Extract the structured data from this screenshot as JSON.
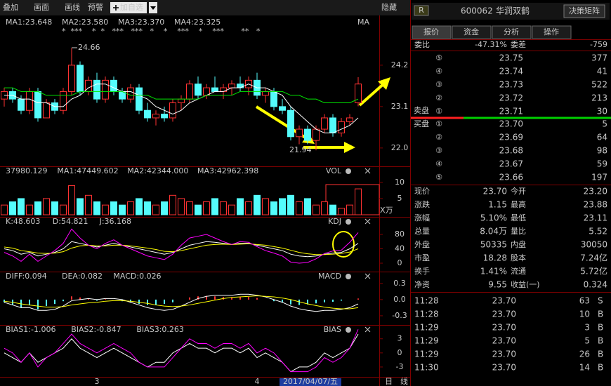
{
  "toolbar": {
    "items": [
      "叠加",
      "画面",
      "画线",
      "预警"
    ],
    "add_button": "加自选",
    "hide": "隐藏"
  },
  "chart": {
    "up_color": "#ff3232",
    "down_color": "#54fcfc",
    "main": {
      "ylim": [
        21.55,
        25.41
      ],
      "yticks": [
        {
          "value": 22,
          "label": "22.0"
        },
        23.1,
        24.2
      ],
      "headers": [
        {
          "text": "MA1:23.648",
          "color": "#ffffff"
        },
        {
          "text": "MA2:23.580",
          "color": "#ffff00"
        },
        {
          "text": "MA3:23.370",
          "color": "#ff00ff"
        },
        {
          "text": "MA4:23.325",
          "color": "#00e600"
        }
      ],
      "title": "MA",
      "stars": "*  ***    *  *   ***   ***   *    *    ***    *    ***       **   *",
      "high_label": "24.66",
      "low_label": "21.94",
      "open": [
        23.3,
        23.5,
        23.3,
        23.0,
        23.5,
        22.8,
        23.2,
        23.0,
        23.5,
        24.2,
        23.5,
        23.8,
        23.3,
        23.8,
        23.5,
        23.3,
        23.6,
        23.0,
        22.8,
        22.9,
        22.8,
        23.2,
        23.3,
        23.7,
        23.4,
        23.6,
        23.5,
        23.6,
        23.7,
        23.6,
        23.8,
        23.4,
        23.5,
        23.1,
        23.0,
        22.3,
        22.5,
        22.2,
        22.5,
        22.8,
        22.4,
        22.7,
        23.2
      ],
      "high": [
        23.6,
        23.6,
        23.4,
        23.6,
        23.6,
        23.3,
        23.3,
        23.6,
        24.66,
        24.3,
        23.9,
        24.0,
        23.9,
        23.9,
        23.6,
        23.7,
        23.7,
        23.2,
        23.0,
        23.1,
        23.3,
        23.4,
        23.8,
        23.9,
        23.7,
        23.9,
        23.7,
        23.8,
        23.9,
        23.9,
        24.0,
        23.6,
        23.6,
        23.3,
        23.1,
        22.6,
        22.6,
        22.6,
        22.9,
        22.9,
        22.8,
        22.9,
        23.88
      ],
      "low": [
        23.1,
        23.2,
        22.9,
        22.9,
        22.7,
        22.8,
        22.9,
        22.9,
        23.4,
        23.4,
        23.4,
        23.2,
        23.2,
        23.4,
        23.2,
        23.2,
        22.9,
        22.7,
        22.6,
        22.7,
        22.7,
        23.0,
        23.2,
        23.3,
        23.3,
        23.5,
        23.3,
        23.4,
        23.5,
        23.4,
        23.3,
        23.2,
        23.0,
        22.9,
        22.2,
        22.1,
        22.1,
        21.94,
        22.4,
        22.3,
        22.3,
        22.6,
        23.11
      ],
      "close": [
        23.5,
        23.3,
        23.0,
        23.5,
        22.8,
        23.2,
        23.0,
        23.5,
        24.2,
        23.5,
        23.8,
        23.3,
        23.8,
        23.5,
        23.3,
        23.6,
        23.0,
        22.8,
        22.9,
        22.8,
        23.2,
        23.3,
        23.7,
        23.4,
        23.6,
        23.5,
        23.6,
        23.7,
        23.6,
        23.8,
        23.4,
        23.5,
        23.1,
        23.0,
        22.3,
        22.5,
        22.2,
        22.5,
        22.8,
        22.4,
        22.7,
        22.8,
        23.7
      ],
      "lines": [
        {
          "color": "#ffffff",
          "values": [
            23.4,
            23.4,
            23.3,
            23.3,
            23.2,
            23.2,
            23.1,
            23.1,
            23.3,
            23.4,
            23.6,
            23.7,
            23.7,
            23.6,
            23.5,
            23.5,
            23.4,
            23.3,
            23.1,
            23.0,
            22.9,
            23.0,
            23.2,
            23.3,
            23.4,
            23.5,
            23.5,
            23.6,
            23.6,
            23.7,
            23.6,
            23.6,
            23.5,
            23.4,
            23.1,
            22.9,
            22.7,
            22.5,
            22.4,
            22.4,
            22.5,
            22.6,
            22.8
          ]
        },
        {
          "color": "#00e600",
          "values": [
            23.6,
            23.6,
            23.5,
            23.5,
            23.5,
            23.4,
            23.4,
            23.4,
            23.4,
            23.5,
            23.5,
            23.5,
            23.5,
            23.5,
            23.5,
            23.4,
            23.4,
            23.4,
            23.3,
            23.3,
            23.3,
            23.3,
            23.3,
            23.3,
            23.4,
            23.4,
            23.4,
            23.4,
            23.5,
            23.5,
            23.5,
            23.5,
            23.5,
            23.5,
            23.4,
            23.4,
            23.3,
            23.3,
            23.2,
            23.2,
            23.2,
            23.2,
            23.3
          ]
        }
      ]
    },
    "vol": {
      "ylim": [
        0,
        14.3
      ],
      "yticks": [
        5,
        10
      ],
      "unit": "X万",
      "title": "VOL",
      "headers": [
        {
          "text": "37980.129",
          "color": "#ffffff"
        },
        {
          "text": "MA1:47449.602",
          "color": "#ffffff"
        },
        {
          "text": "MA2:42344.000",
          "color": "#ff00ff"
        },
        {
          "text": "MA3:42962.398",
          "color": "#00e600"
        }
      ],
      "values": [
        3,
        4,
        5,
        3,
        4,
        5,
        4,
        3,
        9,
        5,
        6,
        4,
        3,
        4,
        3,
        4,
        5,
        4,
        3,
        4,
        6,
        5,
        4,
        3,
        4,
        5,
        4,
        3,
        5,
        4,
        6,
        5,
        4,
        5,
        6,
        4,
        5,
        3,
        4,
        3,
        2,
        3,
        8
      ]
    },
    "kdj": {
      "ylim": [
        -19.5,
        122.9
      ],
      "yticks": [
        0,
        40,
        80
      ],
      "title": "KDJ",
      "headers": [
        {
          "text": "K:48.603",
          "color": "#ffffff"
        },
        {
          "text": "D:54.821",
          "color": "#ffff00"
        },
        {
          "text": "J:36.168",
          "color": "#ff00ff"
        }
      ],
      "lines": [
        {
          "color": "#ffffff",
          "values": [
            40,
            35,
            25,
            30,
            20,
            25,
            30,
            40,
            60,
            55,
            50,
            45,
            50,
            55,
            50,
            45,
            40,
            35,
            30,
            25,
            30,
            40,
            50,
            55,
            60,
            58,
            55,
            52,
            55,
            55,
            50,
            45,
            40,
            35,
            25,
            20,
            18,
            20,
            25,
            28,
            30,
            40,
            55
          ]
        },
        {
          "color": "#ffff00",
          "values": [
            45,
            42,
            35,
            32,
            28,
            27,
            28,
            32,
            42,
            48,
            50,
            48,
            48,
            50,
            50,
            48,
            45,
            42,
            38,
            33,
            32,
            35,
            40,
            45,
            50,
            52,
            53,
            52,
            53,
            54,
            52,
            50,
            46,
            42,
            36,
            30,
            26,
            24,
            24,
            25,
            27,
            31,
            40
          ]
        },
        {
          "color": "#ff00ff",
          "values": [
            30,
            20,
            5,
            25,
            5,
            20,
            35,
            55,
            95,
            70,
            50,
            40,
            55,
            65,
            50,
            40,
            30,
            20,
            15,
            10,
            25,
            50,
            70,
            75,
            80,
            70,
            60,
            52,
            60,
            58,
            46,
            35,
            28,
            20,
            3,
            0,
            2,
            12,
            27,
            34,
            36,
            58,
            85
          ]
        }
      ]
    },
    "macd": {
      "ylim": [
        -0.457,
        0.48
      ],
      "yticks": [
        -0.3,
        {
          "value": 0,
          "label": "0.0"
        },
        0.3
      ],
      "title": "MACD",
      "headers": [
        {
          "text": "DIFF:0.094",
          "color": "#ffffff"
        },
        {
          "text": "DEA:0.082",
          "color": "#ffff00"
        },
        {
          "text": "MACD:0.026",
          "color": "#ff00ff"
        }
      ],
      "bars": [
        -0.05,
        -0.1,
        -0.15,
        -0.1,
        -0.18,
        -0.12,
        -0.08,
        -0.03,
        0.06,
        0.04,
        0.02,
        -0.02,
        0.01,
        0.0,
        -0.03,
        -0.05,
        -0.08,
        -0.1,
        -0.1,
        -0.08,
        -0.05,
        0.0,
        0.04,
        0.06,
        0.07,
        0.06,
        0.05,
        0.04,
        0.05,
        0.05,
        0.03,
        0.0,
        -0.03,
        -0.05,
        -0.09,
        -0.1,
        -0.09,
        -0.07,
        -0.05,
        -0.04,
        -0.02,
        0.0,
        0.02
      ],
      "lines": [
        {
          "color": "#ffffff",
          "values": [
            -0.05,
            -0.1,
            -0.15,
            -0.15,
            -0.2,
            -0.2,
            -0.18,
            -0.12,
            -0.02,
            0.0,
            0.02,
            0.0,
            0.02,
            0.02,
            0.0,
            -0.05,
            -0.1,
            -0.15,
            -0.18,
            -0.2,
            -0.18,
            -0.12,
            -0.05,
            0.02,
            0.06,
            0.08,
            0.08,
            0.08,
            0.1,
            0.1,
            0.08,
            0.05,
            0.0,
            -0.05,
            -0.12,
            -0.17,
            -0.2,
            -0.22,
            -0.2,
            -0.2,
            -0.18,
            -0.15,
            -0.08
          ]
        },
        {
          "color": "#ffff00",
          "values": [
            -0.03,
            -0.05,
            -0.08,
            -0.1,
            -0.12,
            -0.14,
            -0.14,
            -0.13,
            -0.1,
            -0.08,
            -0.06,
            -0.05,
            -0.03,
            -0.02,
            -0.02,
            -0.03,
            -0.05,
            -0.07,
            -0.1,
            -0.12,
            -0.13,
            -0.12,
            -0.1,
            -0.07,
            -0.04,
            -0.01,
            0.02,
            0.04,
            0.05,
            0.06,
            0.07,
            0.06,
            0.05,
            0.03,
            0.0,
            -0.04,
            -0.08,
            -0.11,
            -0.14,
            -0.16,
            -0.17,
            -0.17,
            -0.15
          ]
        }
      ]
    },
    "bias": {
      "ylim": [
        -5.1,
        5.5
      ],
      "yticks": [
        -3,
        0,
        3
      ],
      "title": "BIAS",
      "headers": [
        {
          "text": "BIAS1:-1.006",
          "color": "#ffffff"
        },
        {
          "text": "BIAS2:-0.847",
          "color": "#ffff00"
        },
        {
          "text": "BIAS3:0.263",
          "color": "#ff00ff"
        }
      ],
      "lines": [
        {
          "color": "#ffffff",
          "values": [
            0,
            -1,
            -2,
            0,
            -2,
            -1,
            0,
            1,
            3,
            1,
            0,
            -1,
            0,
            1,
            0,
            -1,
            -2,
            -3,
            -2,
            -2,
            0,
            1,
            2,
            1,
            1,
            0,
            1,
            1,
            0,
            1,
            -1,
            0,
            -1,
            -2,
            -4,
            -3,
            -3,
            -2,
            0,
            -1,
            0,
            1,
            4
          ]
        },
        {
          "color": "#ff00ff",
          "values": [
            1,
            0,
            -2,
            0,
            -3,
            -1,
            0,
            2,
            4,
            2,
            1,
            0,
            1,
            2,
            1,
            0,
            -2,
            -3,
            -3,
            -3,
            -1,
            1,
            3,
            2,
            2,
            1,
            2,
            2,
            1,
            2,
            0,
            1,
            0,
            -2,
            -4,
            -4,
            -4,
            -3,
            -1,
            -2,
            -1,
            1,
            5
          ]
        }
      ]
    },
    "xaxis": {
      "labels": [
        {
          "text": "3",
          "index": 11
        },
        {
          "text": "4",
          "index": 30
        }
      ],
      "date": "2017/04/07/五",
      "period": [
        "日",
        "线"
      ]
    }
  },
  "quote": {
    "badge": "R",
    "code": "600062",
    "name": "华润双鹤",
    "button": "决策矩阵",
    "tabs": [
      "报价",
      "资金",
      "分析",
      "操作"
    ],
    "weibi": [
      "委比",
      "-47.31%",
      "委差",
      "-759"
    ],
    "sell_label": "卖盘",
    "buy_label": "买盘",
    "sell": [
      [
        "⑤",
        "23.75",
        "377"
      ],
      [
        "④",
        "23.74",
        "41"
      ],
      [
        "③",
        "23.73",
        "522"
      ],
      [
        "②",
        "23.72",
        "213"
      ],
      [
        "①",
        "23.71",
        "30"
      ]
    ],
    "buy": [
      [
        "①",
        "23.70",
        "5"
      ],
      [
        "②",
        "23.69",
        "64"
      ],
      [
        "③",
        "23.68",
        "98"
      ],
      [
        "④",
        "23.67",
        "59"
      ],
      [
        "⑤",
        "23.66",
        "197"
      ]
    ],
    "stats": [
      {
        "cells": [
          "现价",
          "23.70",
          "今开",
          "23.20"
        ],
        "colors": [
          "#ff3232",
          "#ff3232"
        ]
      },
      {
        "cells": [
          "涨跌",
          "1.15",
          "最高",
          "23.88"
        ],
        "colors": [
          "#ff3232",
          "#ff3232"
        ]
      },
      {
        "cells": [
          "涨幅",
          "5.10%",
          "最低",
          "23.11"
        ],
        "colors": [
          "#ff3232",
          "#ff3232"
        ]
      },
      {
        "cells": [
          "总量",
          "8.04万",
          "量比",
          "5.52"
        ],
        "colors": [
          "#ffff00",
          "#e0e0e0"
        ]
      },
      {
        "cells": [
          "外盘",
          "50335",
          "内盘",
          "30050"
        ],
        "colors": [
          "#ff3232",
          "#00e600"
        ]
      },
      {
        "cells": [
          "市盈",
          "18.28",
          "股本",
          "7.24亿"
        ],
        "colors": [
          "#e0e0e0",
          "#e0e0e0"
        ]
      },
      {
        "cells": [
          "换手",
          "1.41%",
          "流通",
          "5.72亿"
        ],
        "colors": [
          "#e0e0e0",
          "#e0e0e0"
        ]
      },
      {
        "cells": [
          "净资",
          "9.55",
          "收益(一)",
          "0.324"
        ],
        "colors": [
          "#e0e0e0",
          "#e0e0e0"
        ]
      }
    ],
    "ticks": [
      [
        "11:28",
        "23.70",
        "63",
        "S"
      ],
      [
        "11:28",
        "23.70",
        "10",
        "B"
      ],
      [
        "11:29",
        "23.70",
        "3",
        "B"
      ],
      [
        "11:29",
        "23.70",
        "5",
        "B"
      ],
      [
        "11:29",
        "23.70",
        "26",
        "B"
      ],
      [
        "11:30",
        "23.70",
        "14",
        "B"
      ]
    ]
  }
}
